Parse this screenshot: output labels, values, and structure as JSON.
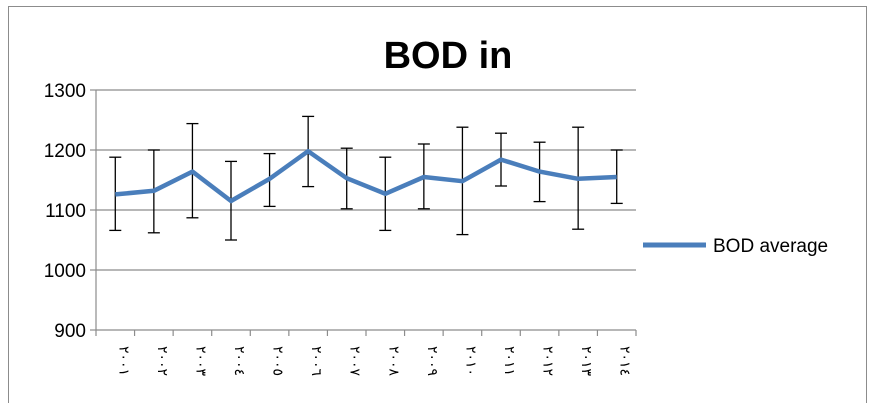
{
  "chart_data": {
    "type": "line",
    "title": "BOD in",
    "xlabel": "",
    "ylabel": "",
    "ylim": [
      900,
      1300
    ],
    "yticks": [
      900,
      1000,
      1100,
      1200,
      1300
    ],
    "grid": true,
    "legend_position": "right",
    "categories": [
      "٢٠٠١",
      "٢٠٠٢",
      "٢٠٠٣",
      "٢٠٠٤",
      "٢٠٠٥",
      "٢٠٠٦",
      "٢٠٠٧",
      "٢٠٠٨",
      "٢٠٠٩",
      "٢٠١٠",
      "٢٠١١",
      "٢٠١٢",
      "٢٠١٣",
      "٢٠١٤"
    ],
    "series": [
      {
        "name": "BOD average",
        "color": "#4a7ebb",
        "values": [
          1126,
          1132,
          1164,
          1115,
          1152,
          1198,
          1153,
          1127,
          1155,
          1148,
          1184,
          1164,
          1152,
          1155
        ],
        "error_high": [
          1188,
          1200,
          1244,
          1181,
          1194,
          1256,
          1203,
          1188,
          1210,
          1238,
          1228,
          1213,
          1238,
          1200
        ],
        "error_low": [
          1066,
          1062,
          1087,
          1050,
          1106,
          1139,
          1102,
          1066,
          1102,
          1059,
          1140,
          1114,
          1068,
          1111
        ]
      }
    ]
  }
}
